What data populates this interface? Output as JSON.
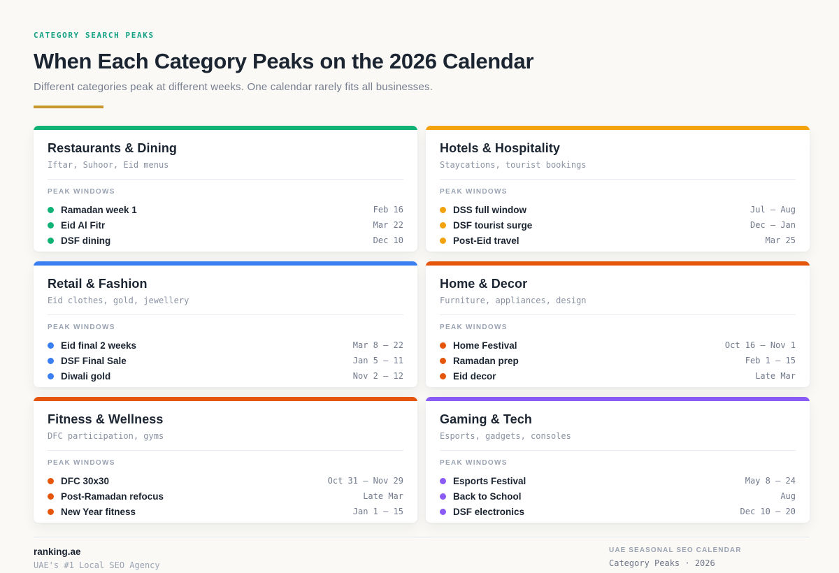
{
  "header": {
    "eyebrow": "CATEGORY SEARCH PEAKS",
    "title": "When Each Category Peaks on the 2026 Calendar",
    "subtitle": "Different categories peak at different weeks. One calendar rarely fits all businesses."
  },
  "peak_windows_label": "PEAK WINDOWS",
  "colors": {
    "page_background": "#FAF9F6",
    "eyebrow_teal": "#12A183",
    "gold_rule": "#C99730",
    "dark_text": "#1B2431",
    "muted_text": "#767E8E",
    "date_text": "#717A8C"
  },
  "cards": [
    {
      "title": "Restaurants & Dining",
      "subtitle": "Iftar, Suhoor, Eid menus",
      "accent": "#10B376",
      "rows": [
        {
          "label": "Ramadan week 1",
          "date": "Feb 16"
        },
        {
          "label": "Eid Al Fitr",
          "date": "Mar 22"
        },
        {
          "label": "DSF dining",
          "date": "Dec 10"
        }
      ]
    },
    {
      "title": "Hotels & Hospitality",
      "subtitle": "Staycations, tourist bookings",
      "accent": "#F2A30D",
      "rows": [
        {
          "label": "DSS full window",
          "date": "Jul – Aug"
        },
        {
          "label": "DSF tourist surge",
          "date": "Dec – Jan"
        },
        {
          "label": "Post-Eid travel",
          "date": "Mar 25"
        }
      ]
    },
    {
      "title": "Retail & Fashion",
      "subtitle": "Eid clothes, gold, jewellery",
      "accent": "#3A7FF2",
      "rows": [
        {
          "label": "Eid final 2 weeks",
          "date": "Mar 8 – 22"
        },
        {
          "label": "DSF Final Sale",
          "date": "Jan 5 – 11"
        },
        {
          "label": "Diwali gold",
          "date": "Nov 2 – 12"
        }
      ]
    },
    {
      "title": "Home & Decor",
      "subtitle": "Furniture, appliances, design",
      "accent": "#E5560C",
      "rows": [
        {
          "label": "Home Festival",
          "date": "Oct 16 – Nov 1"
        },
        {
          "label": "Ramadan prep",
          "date": "Feb 1 – 15"
        },
        {
          "label": "Eid decor",
          "date": "Late Mar"
        }
      ]
    },
    {
      "title": "Fitness & Wellness",
      "subtitle": "DFC participation, gyms",
      "accent": "#E5560C",
      "rows": [
        {
          "label": "DFC 30x30",
          "date": "Oct 31 – Nov 29"
        },
        {
          "label": "Post-Ramadan refocus",
          "date": "Late Mar"
        },
        {
          "label": "New Year fitness",
          "date": "Jan 1 – 15"
        }
      ]
    },
    {
      "title": "Gaming & Tech",
      "subtitle": "Esports, gadgets, consoles",
      "accent": "#8A5BF5",
      "rows": [
        {
          "label": "Esports Festival",
          "date": "May 8 – 24"
        },
        {
          "label": "Back to School",
          "date": "Aug"
        },
        {
          "label": "DSF electronics",
          "date": "Dec 10 – 20"
        }
      ]
    }
  ],
  "footer": {
    "brand": "ranking.ae",
    "brand_tagline": "UAE's #1 Local SEO Agency",
    "right_label": "UAE SEASONAL SEO CALENDAR",
    "right_text": "Category Peaks · 2026"
  }
}
